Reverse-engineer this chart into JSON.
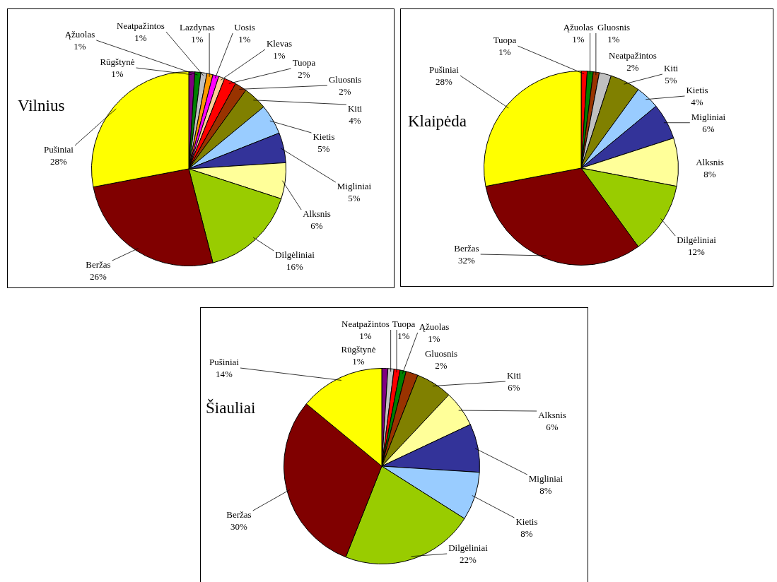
{
  "chart_data": [
    {
      "type": "pie",
      "title": "Vilnius",
      "categories": [
        "Rūgštynė",
        "Ąžuolas",
        "Neatpažintos",
        "Lazdynas",
        "Uosis",
        "Klevas",
        "Tuopa",
        "Gluosnis",
        "Kiti",
        "Kietis",
        "Migliniai",
        "Alksnis",
        "Dilgėliniai",
        "Beržas",
        "Pušiniai"
      ],
      "values": [
        1,
        1,
        1,
        1,
        1,
        1,
        2,
        2,
        4,
        5,
        5,
        6,
        16,
        26,
        28
      ],
      "value_labels": [
        "1%",
        "1%",
        "1%",
        "1%",
        "1%",
        "1%",
        "2%",
        "2%",
        "4%",
        "5%",
        "5%",
        "6%",
        "16%",
        "26%",
        "28%"
      ],
      "colors": [
        "#800080",
        "#008000",
        "#c0c0c0",
        "#ff9900",
        "#ff00ff",
        "#ffcc99",
        "#ff0000",
        "#993300",
        "#808000",
        "#99ccff",
        "#333399",
        "#ffff99",
        "#99cc00",
        "#800000",
        "#ffff00"
      ],
      "legend": false
    },
    {
      "type": "pie",
      "title": "Klaipėda",
      "categories": [
        "Tuopa",
        "Ąžuolas",
        "Gluosnis",
        "Neatpažintos",
        "Kiti",
        "Kietis",
        "Migliniai",
        "Alksnis",
        "Dilgėliniai",
        "Beržas",
        "Pušiniai"
      ],
      "values": [
        1,
        1,
        1,
        2,
        5,
        4,
        6,
        8,
        12,
        32,
        28
      ],
      "value_labels": [
        "1%",
        "1%",
        "1%",
        "2%",
        "5%",
        "4%",
        "6%",
        "8%",
        "12%",
        "32%",
        "28%"
      ],
      "colors": [
        "#ff0000",
        "#008000",
        "#993300",
        "#c0c0c0",
        "#808000",
        "#99ccff",
        "#333399",
        "#ffff99",
        "#99cc00",
        "#800000",
        "#ffff00"
      ],
      "legend": false
    },
    {
      "type": "pie",
      "title": "Šiauliai",
      "categories": [
        "Rūgštynė",
        "Neatpažintos",
        "Tuopa",
        "Ąžuolas",
        "Gluosnis",
        "Kiti",
        "Alksnis",
        "Migliniai",
        "Kietis",
        "Dilgėliniai",
        "Beržas",
        "Pušiniai"
      ],
      "values": [
        1,
        1,
        1,
        1,
        2,
        6,
        6,
        8,
        8,
        22,
        30,
        14
      ],
      "value_labels": [
        "1%",
        "1%",
        "1%",
        "1%",
        "2%",
        "6%",
        "6%",
        "8%",
        "8%",
        "22%",
        "30%",
        "14%"
      ],
      "colors": [
        "#800080",
        "#c0c0c0",
        "#ff0000",
        "#008000",
        "#993300",
        "#808000",
        "#ffff99",
        "#333399",
        "#99ccff",
        "#99cc00",
        "#800000",
        "#ffff00"
      ],
      "legend": false
    }
  ]
}
